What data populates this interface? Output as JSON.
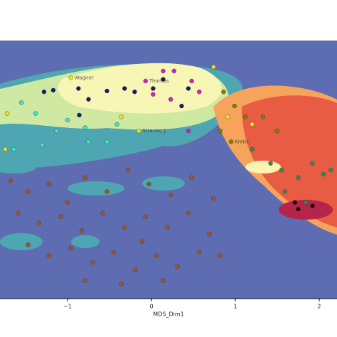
{
  "chart_data": {
    "type": "scatter",
    "xlabel": "MDS_Dim1",
    "xlim": [
      -1.805,
      2.212
    ],
    "ylim": [
      -1.556,
      1.547
    ],
    "xticks": [
      {
        "value": -1,
        "label": "−1"
      },
      0,
      1,
      2
    ],
    "series": [
      {
        "color": "#191970",
        "x": [
          -1.28,
          -1.17,
          -0.87,
          -0.75,
          -0.53,
          -0.32,
          -0.2,
          0.02,
          0.14,
          0.36,
          0.44,
          -0.86
        ],
        "y": [
          0.93,
          0.95,
          0.97,
          0.84,
          0.94,
          0.97,
          0.93,
          0.97,
          1.08,
          0.76,
          0.97,
          0.65
        ]
      },
      {
        "color": "#d020c0",
        "x": [
          0.14,
          0.27,
          -0.07,
          0.02,
          0.48,
          0.57,
          0.23,
          0.44
        ],
        "y": [
          1.18,
          1.18,
          1.06,
          0.9,
          1.06,
          0.93,
          0.84,
          0.46
        ],
        "labels": [
          null,
          null,
          "Thomas",
          null,
          null,
          null,
          null,
          null
        ]
      },
      {
        "color": "#e8e020",
        "x": [
          -1.72,
          -0.96,
          -0.36,
          -0.15,
          0.74,
          0.91,
          1.2,
          -1.74
        ],
        "y": [
          0.67,
          1.1,
          0.63,
          0.46,
          1.23,
          0.63,
          0.54,
          0.24
        ],
        "labels": [
          null,
          "Wagner",
          null,
          "Strauss, J.",
          null,
          null,
          null,
          null
        ]
      },
      {
        "color": "#40e0d0",
        "x": [
          -1.55,
          -1.38,
          -1.13,
          -1.0,
          -0.79,
          -0.53,
          -0.41,
          -1.64,
          -1.3,
          -0.75
        ],
        "y": [
          0.8,
          0.67,
          0.46,
          0.59,
          0.5,
          0.33,
          0.54,
          0.24,
          0.29,
          0.33
        ]
      },
      {
        "color": "#808000",
        "x": [
          0.86,
          0.99,
          1.12,
          0.82,
          0.95,
          1.33,
          1.5
        ],
        "y": [
          0.93,
          0.76,
          0.63,
          0.46,
          0.33,
          0.63,
          0.46
        ],
        "labels": [
          null,
          null,
          null,
          null,
          "Krebs",
          null,
          null
        ]
      },
      {
        "color": "#2e8b57",
        "x": [
          1.42,
          1.55,
          1.75,
          1.92,
          2.05,
          1.59,
          1.84,
          2.14,
          1.2
        ],
        "y": [
          0.07,
          -0.01,
          -0.1,
          0.07,
          -0.06,
          -0.27,
          -0.4,
          -0.01,
          0.24
        ]
      },
      {
        "color": "#200000",
        "x": [
          1.71,
          1.75,
          1.92
        ],
        "y": [
          -0.4,
          -0.48,
          -0.44
        ]
      },
      {
        "color": "#a0522d",
        "x": [
          -1.68,
          -1.47,
          -1.22,
          -1.0,
          -0.79,
          -0.53,
          -0.28,
          -0.03,
          0.23,
          0.48,
          0.74,
          -1.59,
          -1.34,
          -1.08,
          -0.83,
          -0.58,
          -0.32,
          -0.07,
          0.19,
          0.44,
          0.69,
          -1.47,
          -1.22,
          -0.96,
          -0.7,
          -0.45,
          -0.19,
          0.06,
          0.31,
          0.57,
          -0.79,
          -0.36,
          0.14,
          -0.11,
          0.82
        ],
        "y": [
          -0.14,
          -0.27,
          -0.18,
          -0.4,
          -0.1,
          -0.27,
          -0.01,
          -0.18,
          -0.31,
          -0.1,
          -0.35,
          -0.53,
          -0.65,
          -0.57,
          -0.74,
          -0.53,
          -0.7,
          -0.57,
          -0.7,
          -0.53,
          -0.78,
          -0.91,
          -1.04,
          -0.95,
          -1.12,
          -1.0,
          -1.21,
          -1.04,
          -1.17,
          -1.0,
          -1.34,
          -1.38,
          -1.34,
          -0.87,
          -1.04
        ]
      }
    ]
  }
}
